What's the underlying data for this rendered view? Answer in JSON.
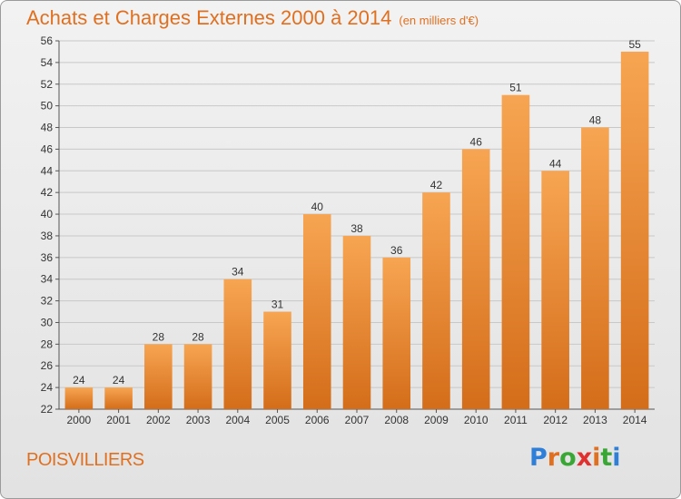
{
  "chart_data": {
    "type": "bar",
    "title": "Achats et Charges Externes 2000 à 2014",
    "subtitle": "(en milliers d'€)",
    "categories": [
      "2000",
      "2001",
      "2002",
      "2003",
      "2004",
      "2005",
      "2006",
      "2007",
      "2008",
      "2009",
      "2010",
      "2011",
      "2012",
      "2013",
      "2014"
    ],
    "values": [
      24,
      24,
      28,
      28,
      34,
      31,
      40,
      38,
      36,
      42,
      46,
      51,
      44,
      48,
      55
    ],
    "ylim": [
      22,
      56
    ],
    "yticks": [
      22,
      24,
      26,
      28,
      30,
      32,
      34,
      36,
      38,
      40,
      42,
      44,
      46,
      48,
      50,
      52,
      54,
      56
    ],
    "grid": true,
    "bar_color_top": "#f7a552",
    "bar_color_bottom": "#d46d1a"
  },
  "footer": {
    "commune": "POISVILLIERS",
    "brand": "Proxiti",
    "brand_colors": [
      "#2f7fd8",
      "#e07020",
      "#3aa635",
      "#e03030",
      "#e07020",
      "#3aa635",
      "#2f7fd8"
    ]
  }
}
